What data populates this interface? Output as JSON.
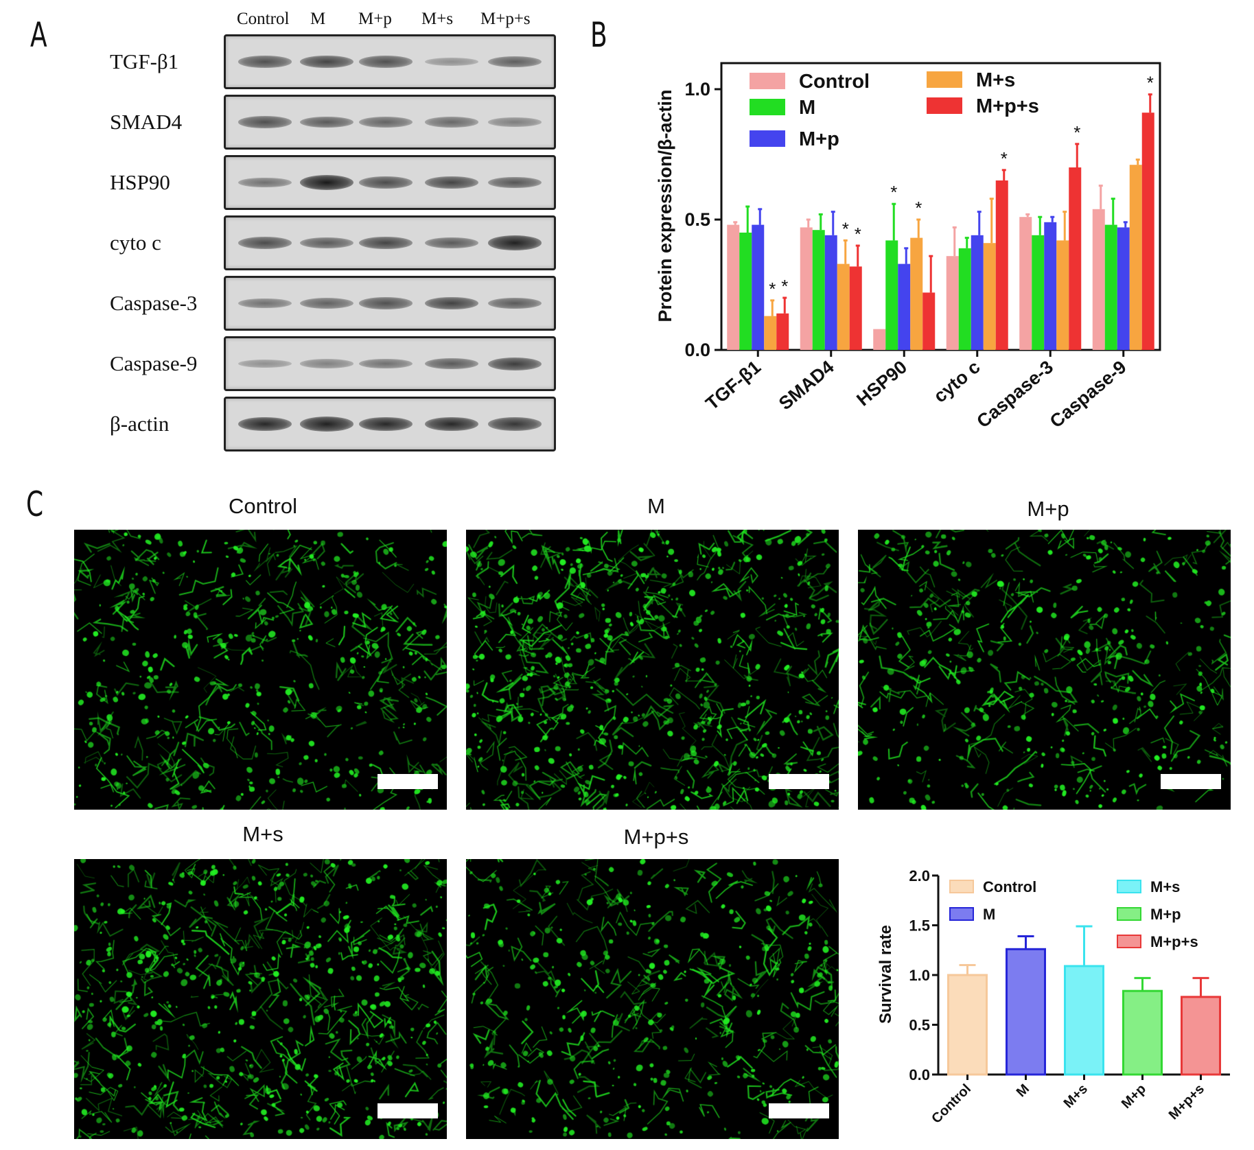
{
  "panel_labels": {
    "a": "A",
    "b": "B",
    "c": "C"
  },
  "western_blot": {
    "lanes": [
      "Control",
      "M",
      "M+p",
      "M+s",
      "M+p+s"
    ],
    "rows": [
      {
        "label": "TGF-β1",
        "intensity": [
          0.62,
          0.7,
          0.62,
          0.18,
          0.52
        ]
      },
      {
        "label": "SMAD4",
        "intensity": [
          0.62,
          0.55,
          0.48,
          0.45,
          0.3
        ]
      },
      {
        "label": "HSP90",
        "intensity": [
          0.4,
          1.0,
          0.65,
          0.7,
          0.58
        ]
      },
      {
        "label": "cyto c",
        "intensity": [
          0.65,
          0.55,
          0.7,
          0.55,
          0.95
        ]
      },
      {
        "label": "Caspase-3",
        "intensity": [
          0.4,
          0.5,
          0.62,
          0.72,
          0.55
        ]
      },
      {
        "label": "Caspase-9",
        "intensity": [
          0.18,
          0.28,
          0.4,
          0.55,
          0.75
        ]
      },
      {
        "label": "β-actin",
        "intensity": [
          0.9,
          0.95,
          0.9,
          0.9,
          0.8
        ]
      }
    ]
  },
  "micrographs": {
    "titles": [
      "Control",
      "M",
      "M+p",
      "M+s",
      "M+p+s"
    ],
    "stain_color": "#22ee22",
    "density": [
      0.75,
      1.05,
      0.7,
      0.95,
      0.7
    ]
  },
  "chart_data": [
    {
      "type": "bar",
      "ylabel": "Protein expression/β-actin",
      "xlabel": "",
      "ylim": [
        0,
        1.1
      ],
      "yticks": [
        "0.0",
        "0.5",
        "1.0"
      ],
      "categories": [
        "TGF-β1",
        "SMAD4",
        "HSP90",
        "cyto c",
        "Caspase-3",
        "Caspase-9"
      ],
      "legend_position": "top-left",
      "series": [
        {
          "name": "Control",
          "color": "#f4a3a3",
          "values": [
            0.48,
            0.47,
            0.08,
            0.36,
            0.51,
            0.54
          ],
          "errors": [
            0.01,
            0.03,
            0.0,
            0.11,
            0.01,
            0.09
          ],
          "sig": [
            false,
            false,
            false,
            false,
            false,
            false
          ]
        },
        {
          "name": "M",
          "color": "#22dd22",
          "values": [
            0.45,
            0.46,
            0.42,
            0.39,
            0.44,
            0.48
          ],
          "errors": [
            0.1,
            0.06,
            0.14,
            0.04,
            0.07,
            0.1
          ],
          "sig": [
            false,
            false,
            true,
            false,
            false,
            false
          ]
        },
        {
          "name": "M+p",
          "color": "#4444ee",
          "values": [
            0.48,
            0.44,
            0.33,
            0.44,
            0.49,
            0.47
          ],
          "errors": [
            0.06,
            0.09,
            0.06,
            0.09,
            0.02,
            0.02
          ],
          "sig": [
            false,
            false,
            false,
            false,
            false,
            false
          ]
        },
        {
          "name": "M+s",
          "color": "#f7a540",
          "values": [
            0.13,
            0.33,
            0.43,
            0.41,
            0.42,
            0.71
          ],
          "errors": [
            0.06,
            0.09,
            0.07,
            0.17,
            0.11,
            0.02
          ],
          "sig": [
            true,
            true,
            true,
            false,
            false,
            false
          ]
        },
        {
          "name": "M+p+s",
          "color": "#ee3333",
          "values": [
            0.14,
            0.32,
            0.22,
            0.65,
            0.7,
            0.91
          ],
          "errors": [
            0.06,
            0.08,
            0.14,
            0.04,
            0.09,
            0.07
          ],
          "sig": [
            true,
            true,
            false,
            true,
            true,
            true
          ]
        }
      ]
    },
    {
      "type": "bar",
      "ylabel": "Survival rate",
      "xlabel": "",
      "ylim": [
        0,
        2.0
      ],
      "yticks": [
        "0.0",
        "0.5",
        "1.0",
        "1.5",
        "2.0"
      ],
      "categories": [
        "Control",
        "M",
        "M+s",
        "M+p",
        "M+p+s"
      ],
      "legend_position": "top",
      "values": [
        1.0,
        1.26,
        1.09,
        0.84,
        0.78
      ],
      "errors": [
        0.1,
        0.13,
        0.4,
        0.13,
        0.19
      ],
      "fills": [
        "#fbdcba",
        "#7c7cf0",
        "#7af2f7",
        "#85ef85",
        "#f49494"
      ],
      "strokes": [
        "#f6c89a",
        "#2525d8",
        "#3ae3ee",
        "#33d833",
        "#e83838"
      ],
      "legend": [
        "Control",
        "M",
        "M+s",
        "M+p",
        "M+p+s"
      ]
    }
  ]
}
